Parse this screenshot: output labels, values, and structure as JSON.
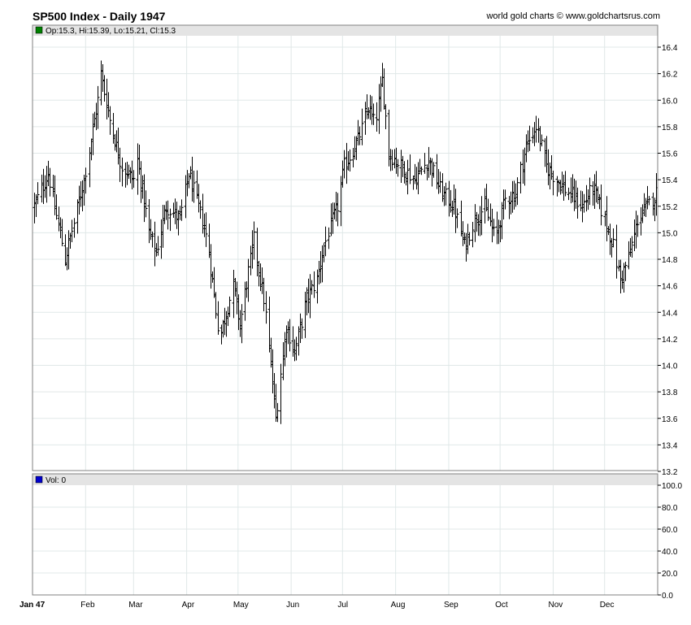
{
  "header": {
    "title": "SP500 Index - Daily 1947",
    "credit": "world gold charts © www.goldchartsrus.com",
    "ohlc_label": "Op:15.3, Hi:15.39, Lo:15.21, Cl:15.3",
    "vol_label": "Vol: 0"
  },
  "colors": {
    "ohlc_swatch": "#008000",
    "vol_swatch": "#0000cc",
    "bars": "#000000",
    "grid": "#e0e8e8",
    "header_band": "#e4e4e4"
  },
  "chart_data": [
    {
      "type": "ohlc",
      "title": "SP500 Index - Daily 1947",
      "ylim": [
        13.2,
        16.5
      ],
      "y_ticks": [
        "13.2",
        "13.4",
        "13.6",
        "13.8",
        "14.0",
        "14.2",
        "14.4",
        "14.6",
        "14.8",
        "15.0",
        "15.2",
        "15.4",
        "15.6",
        "15.8",
        "16.0",
        "16.2",
        "16.4"
      ],
      "y_axis_side": "right",
      "x_labels": [
        "Jan 47",
        "Feb",
        "Mar",
        "Apr",
        "May",
        "Jun",
        "Jul",
        "Aug",
        "Sep",
        "Oct",
        "Nov",
        "Dec"
      ],
      "grid": true,
      "close_path": [
        [
          "1947-01-02",
          15.2
        ],
        [
          "1947-01-10",
          15.45
        ],
        [
          "1947-01-20",
          14.8
        ],
        [
          "1947-01-31",
          15.4
        ],
        [
          "1947-02-08",
          16.0
        ],
        [
          "1947-02-10",
          16.2
        ],
        [
          "1947-02-15",
          15.85
        ],
        [
          "1947-02-22",
          15.5
        ],
        [
          "1947-03-01",
          15.4
        ],
        [
          "1947-03-03",
          15.55
        ],
        [
          "1947-03-10",
          15.0
        ],
        [
          "1947-03-14",
          14.85
        ],
        [
          "1947-03-20",
          15.2
        ],
        [
          "1947-03-28",
          15.1
        ],
        [
          "1947-04-02",
          15.45
        ],
        [
          "1947-04-10",
          15.1
        ],
        [
          "1947-04-14",
          14.85
        ],
        [
          "1947-04-20",
          14.2
        ],
        [
          "1947-04-28",
          14.6
        ],
        [
          "1947-05-02",
          14.3
        ],
        [
          "1947-05-10",
          14.95
        ],
        [
          "1947-05-16",
          14.5
        ],
        [
          "1947-05-20",
          14.0
        ],
        [
          "1947-05-23",
          13.6
        ],
        [
          "1947-05-29",
          14.3
        ],
        [
          "1947-06-03",
          14.1
        ],
        [
          "1947-06-10",
          14.5
        ],
        [
          "1947-06-16",
          14.65
        ],
        [
          "1947-06-20",
          14.9
        ],
        [
          "1947-06-28",
          15.2
        ],
        [
          "1947-07-02",
          15.5
        ],
        [
          "1947-07-10",
          15.7
        ],
        [
          "1947-07-16",
          15.95
        ],
        [
          "1947-07-20",
          15.8
        ],
        [
          "1947-07-24",
          16.15
        ],
        [
          "1947-07-28",
          15.6
        ],
        [
          "1947-08-04",
          15.5
        ],
        [
          "1947-08-12",
          15.4
        ],
        [
          "1947-08-20",
          15.55
        ],
        [
          "1947-08-28",
          15.3
        ],
        [
          "1947-09-04",
          15.2
        ],
        [
          "1947-09-10",
          14.9
        ],
        [
          "1947-09-16",
          15.1
        ],
        [
          "1947-09-22",
          15.2
        ],
        [
          "1947-09-28",
          14.95
        ],
        [
          "1947-10-04",
          15.25
        ],
        [
          "1947-10-10",
          15.3
        ],
        [
          "1947-10-16",
          15.65
        ],
        [
          "1947-10-22",
          15.8
        ],
        [
          "1947-10-28",
          15.5
        ],
        [
          "1947-11-03",
          15.4
        ],
        [
          "1947-11-10",
          15.3
        ],
        [
          "1947-11-18",
          15.2
        ],
        [
          "1947-11-24",
          15.35
        ],
        [
          "1947-12-01",
          15.1
        ],
        [
          "1947-12-06",
          14.9
        ],
        [
          "1947-12-10",
          14.65
        ],
        [
          "1947-12-16",
          14.85
        ],
        [
          "1947-12-20",
          15.1
        ],
        [
          "1947-12-26",
          15.2
        ],
        [
          "1947-12-31",
          15.3
        ]
      ]
    },
    {
      "type": "bar",
      "title": "Vol: 0",
      "ylim": [
        0,
        100
      ],
      "y_ticks": [
        "0.0",
        "20.0",
        "40.0",
        "60.0",
        "80.0",
        "100.0"
      ],
      "y_axis_side": "right",
      "values": [
        0
      ],
      "grid": true
    }
  ]
}
